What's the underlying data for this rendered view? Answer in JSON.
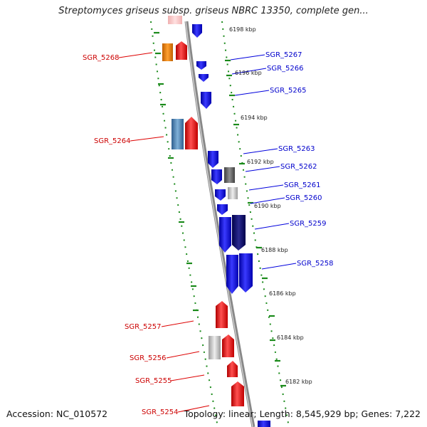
{
  "title": "Streptomyces griseus subsp. griseus NBRC 13350, complete gen...",
  "footer": {
    "accession": "Accession: NC_010572",
    "summary": "Topology: linear; Length: 8,545,929 bp; Genes: 7,222"
  },
  "colors": {
    "forward": "#e00000",
    "reverse": "#0000ee",
    "forward_label": "#cc0000",
    "reverse_label": "#0000cc",
    "gc_marker": "#228b22",
    "backbone": "#808080"
  },
  "ruler": [
    {
      "label": "6198 kbp"
    },
    {
      "label": "6196 kbp"
    },
    {
      "label": "6194 kbp"
    },
    {
      "label": "6192 kbp"
    },
    {
      "label": "6190 kbp"
    },
    {
      "label": "6188 kbp"
    },
    {
      "label": "6186 kbp"
    },
    {
      "label": "6184 kbp"
    },
    {
      "label": "6182 kbp"
    }
  ],
  "genes": [
    {
      "id": "SGR_5268",
      "strand": "forward"
    },
    {
      "id": "SGR_5267",
      "strand": "reverse"
    },
    {
      "id": "SGR_5266",
      "strand": "reverse"
    },
    {
      "id": "SGR_5265",
      "strand": "reverse"
    },
    {
      "id": "SGR_5264",
      "strand": "forward"
    },
    {
      "id": "SGR_5263",
      "strand": "reverse"
    },
    {
      "id": "SGR_5262",
      "strand": "reverse"
    },
    {
      "id": "SGR_5261",
      "strand": "reverse"
    },
    {
      "id": "SGR_5260",
      "strand": "reverse"
    },
    {
      "id": "SGR_5259",
      "strand": "reverse"
    },
    {
      "id": "SGR_5258",
      "strand": "reverse"
    },
    {
      "id": "SGR_5257",
      "strand": "forward"
    },
    {
      "id": "SGR_5256",
      "strand": "forward"
    },
    {
      "id": "SGR_5255",
      "strand": "forward"
    },
    {
      "id": "SGR_5254",
      "strand": "forward"
    }
  ]
}
